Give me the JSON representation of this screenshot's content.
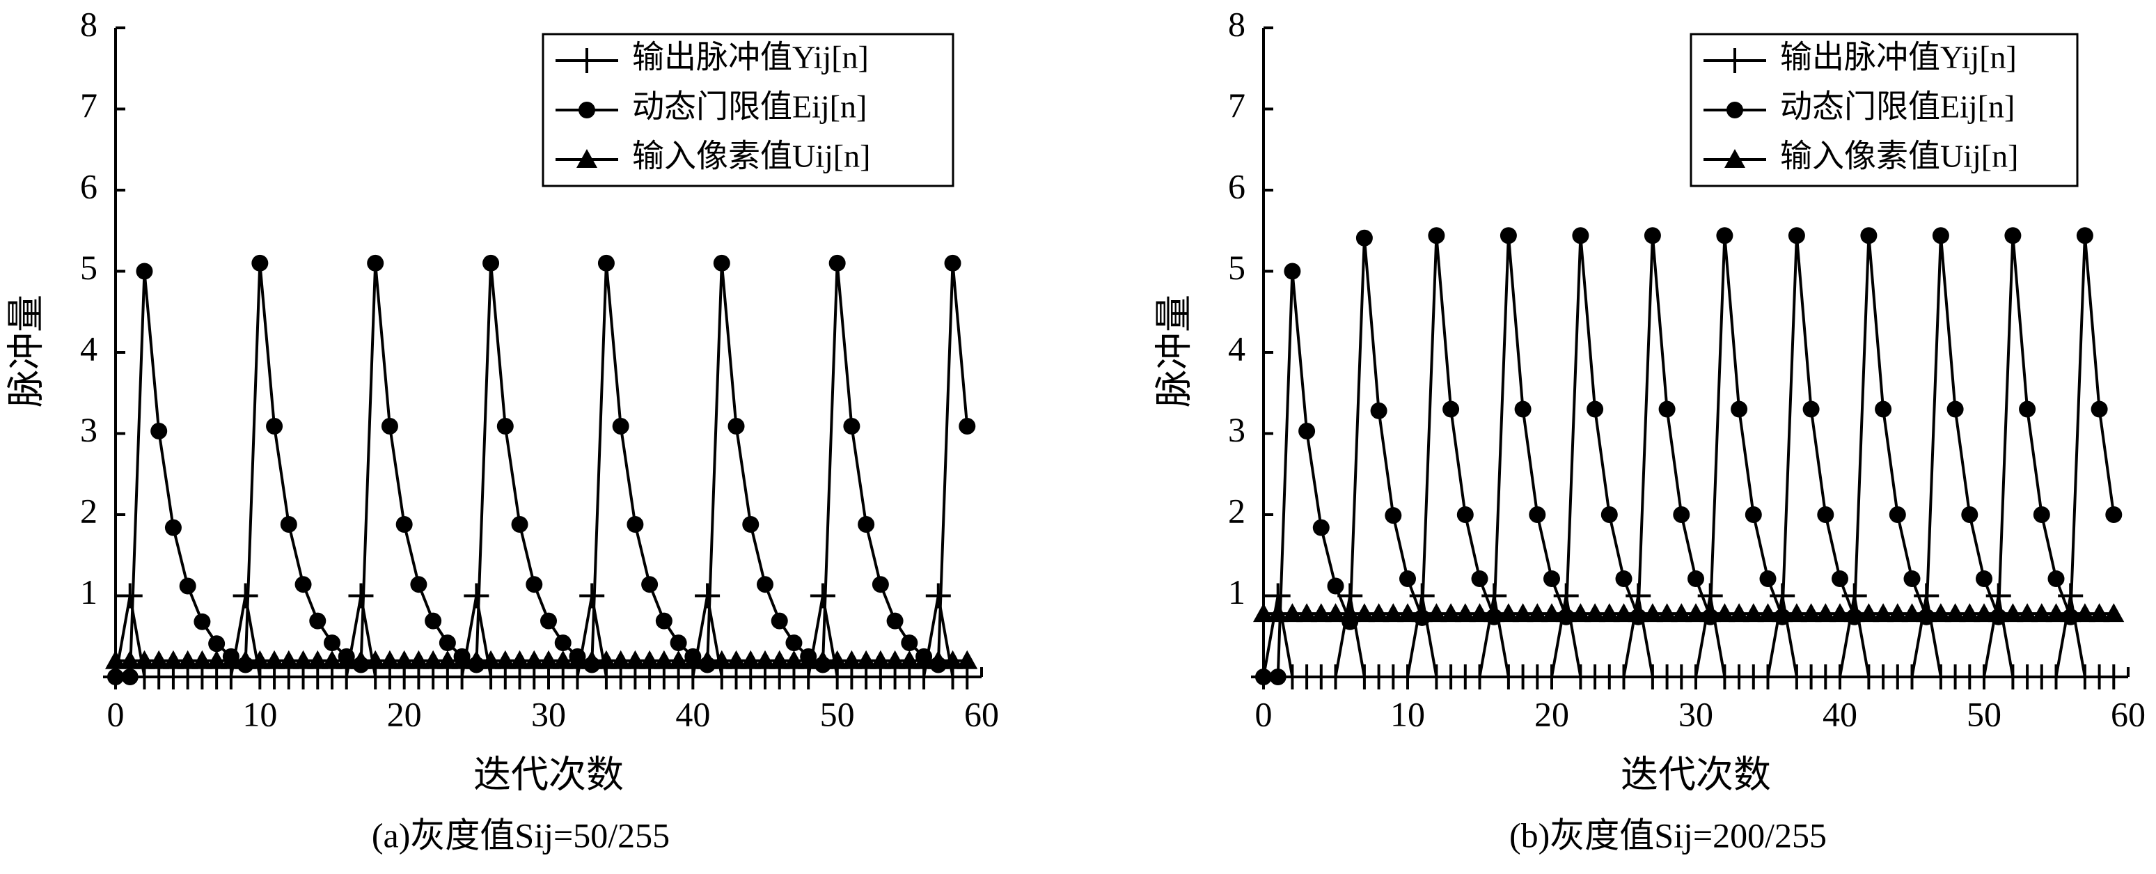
{
  "chart_data": [
    {
      "type": "line",
      "caption": "(a)灰度值Sij=50/255",
      "xlabel": "迭代次数",
      "ylabel": "脉冲量",
      "xlim": [
        0,
        60
      ],
      "ylim": [
        0,
        8
      ],
      "xticks": [
        0,
        10,
        20,
        30,
        40,
        50,
        60
      ],
      "yticks": [
        1,
        2,
        3,
        4,
        5,
        6,
        7,
        8
      ],
      "legend": "upper right",
      "x": [
        0,
        1,
        2,
        3,
        4,
        5,
        6,
        7,
        8,
        9,
        10,
        11,
        12,
        13,
        14,
        15,
        16,
        17,
        18,
        19,
        20,
        21,
        22,
        23,
        24,
        25,
        26,
        27,
        28,
        29,
        30,
        31,
        32,
        33,
        34,
        35,
        36,
        37,
        38,
        39,
        40,
        41,
        42,
        43,
        44,
        45,
        46,
        47,
        48,
        49,
        50,
        51,
        52,
        53,
        54,
        55,
        56,
        57,
        58,
        59
      ],
      "series": [
        {
          "name": "输出脉冲值Yij[n]",
          "color": "#000000",
          "marker": "plus",
          "values": [
            0,
            1,
            0,
            0,
            0,
            0,
            0,
            0,
            0,
            1,
            0,
            0,
            0,
            0,
            0,
            0,
            0,
            1,
            0,
            0,
            0,
            0,
            0,
            0,
            0,
            1,
            0,
            0,
            0,
            0,
            0,
            0,
            0,
            1,
            0,
            0,
            0,
            0,
            0,
            0,
            0,
            1,
            0,
            0,
            0,
            0,
            0,
            0,
            0,
            1,
            0,
            0,
            0,
            0,
            0,
            0,
            0,
            1,
            0,
            0
          ]
        },
        {
          "name": "动态门限值Eij[n]",
          "color": "#000000",
          "marker": "circle",
          "values": [
            0,
            0,
            5.0,
            3.03,
            1.84,
            1.12,
            0.68,
            0.41,
            0.25,
            0.15,
            5.1,
            3.09,
            1.88,
            1.14,
            0.69,
            0.42,
            0.25,
            0.15,
            5.1,
            3.09,
            1.88,
            1.14,
            0.69,
            0.42,
            0.25,
            0.15,
            5.1,
            3.09,
            1.88,
            1.14,
            0.69,
            0.42,
            0.25,
            0.15,
            5.1,
            3.09,
            1.88,
            1.14,
            0.69,
            0.42,
            0.25,
            0.15,
            5.1,
            3.09,
            1.88,
            1.14,
            0.69,
            0.42,
            0.25,
            0.15,
            5.1,
            3.09,
            1.88,
            1.14,
            0.69,
            0.42,
            0.25,
            0.15,
            5.1,
            3.09
          ]
        },
        {
          "name": "输入像素值Uij[n]",
          "color": "#000000",
          "marker": "triangle",
          "values": [
            0.2,
            0.2,
            0.2,
            0.2,
            0.2,
            0.2,
            0.2,
            0.2,
            0.2,
            0.2,
            0.2,
            0.2,
            0.2,
            0.2,
            0.2,
            0.2,
            0.2,
            0.2,
            0.2,
            0.2,
            0.2,
            0.2,
            0.2,
            0.2,
            0.2,
            0.2,
            0.2,
            0.2,
            0.2,
            0.2,
            0.2,
            0.2,
            0.2,
            0.2,
            0.2,
            0.2,
            0.2,
            0.2,
            0.2,
            0.2,
            0.2,
            0.2,
            0.2,
            0.2,
            0.2,
            0.2,
            0.2,
            0.2,
            0.2,
            0.2,
            0.2,
            0.2,
            0.2,
            0.2,
            0.2,
            0.2,
            0.2,
            0.2,
            0.2,
            0.2
          ]
        }
      ]
    },
    {
      "type": "line",
      "caption": "(b)灰度值Sij=200/255",
      "xlabel": "迭代次数",
      "ylabel": "脉冲量",
      "xlim": [
        0,
        60
      ],
      "ylim": [
        0,
        8
      ],
      "xticks": [
        0,
        10,
        20,
        30,
        40,
        50,
        60
      ],
      "yticks": [
        1,
        2,
        3,
        4,
        5,
        6,
        7,
        8
      ],
      "legend": "upper right",
      "x": [
        0,
        1,
        2,
        3,
        4,
        5,
        6,
        7,
        8,
        9,
        10,
        11,
        12,
        13,
        14,
        15,
        16,
        17,
        18,
        19,
        20,
        21,
        22,
        23,
        24,
        25,
        26,
        27,
        28,
        29,
        30,
        31,
        32,
        33,
        34,
        35,
        36,
        37,
        38,
        39,
        40,
        41,
        42,
        43,
        44,
        45,
        46,
        47,
        48,
        49,
        50,
        51,
        52,
        53,
        54,
        55,
        56,
        57,
        58,
        59
      ],
      "series": [
        {
          "name": "输出脉冲值Yij[n]",
          "color": "#000000",
          "marker": "plus",
          "values": [
            0,
            1,
            0,
            0,
            0,
            0,
            1,
            0,
            0,
            0,
            0,
            1,
            0,
            0,
            0,
            0,
            1,
            0,
            0,
            0,
            0,
            1,
            0,
            0,
            0,
            0,
            1,
            0,
            0,
            0,
            0,
            1,
            0,
            0,
            0,
            0,
            1,
            0,
            0,
            0,
            0,
            1,
            0,
            0,
            0,
            0,
            1,
            0,
            0,
            0,
            0,
            1,
            0,
            0,
            0,
            0,
            1,
            0,
            0,
            0
          ]
        },
        {
          "name": "动态门限值Eij[n]",
          "color": "#000000",
          "marker": "circle",
          "values": [
            0,
            0,
            5.0,
            3.03,
            1.84,
            1.12,
            0.68,
            5.41,
            3.28,
            1.99,
            1.21,
            0.73,
            5.44,
            3.3,
            2.0,
            1.21,
            0.74,
            5.44,
            3.3,
            2.0,
            1.21,
            0.74,
            5.44,
            3.3,
            2.0,
            1.21,
            0.74,
            5.44,
            3.3,
            2.0,
            1.21,
            0.74,
            5.44,
            3.3,
            2.0,
            1.21,
            0.74,
            5.44,
            3.3,
            2.0,
            1.21,
            0.74,
            5.44,
            3.3,
            2.0,
            1.21,
            0.74,
            5.44,
            3.3,
            2.0,
            1.21,
            0.74,
            5.44,
            3.3,
            2.0,
            1.21,
            0.74,
            5.44,
            3.3,
            2.0
          ]
        },
        {
          "name": "输入像素值Uij[n]",
          "color": "#000000",
          "marker": "triangle",
          "values": [
            0.78,
            0.78,
            0.78,
            0.78,
            0.78,
            0.78,
            0.78,
            0.78,
            0.78,
            0.78,
            0.78,
            0.78,
            0.78,
            0.78,
            0.78,
            0.78,
            0.78,
            0.78,
            0.78,
            0.78,
            0.78,
            0.78,
            0.78,
            0.78,
            0.78,
            0.78,
            0.78,
            0.78,
            0.78,
            0.78,
            0.78,
            0.78,
            0.78,
            0.78,
            0.78,
            0.78,
            0.78,
            0.78,
            0.78,
            0.78,
            0.78,
            0.78,
            0.78,
            0.78,
            0.78,
            0.78,
            0.78,
            0.78,
            0.78,
            0.78,
            0.78,
            0.78,
            0.78,
            0.78,
            0.78,
            0.78,
            0.78,
            0.78,
            0.78,
            0.78
          ]
        }
      ]
    }
  ]
}
